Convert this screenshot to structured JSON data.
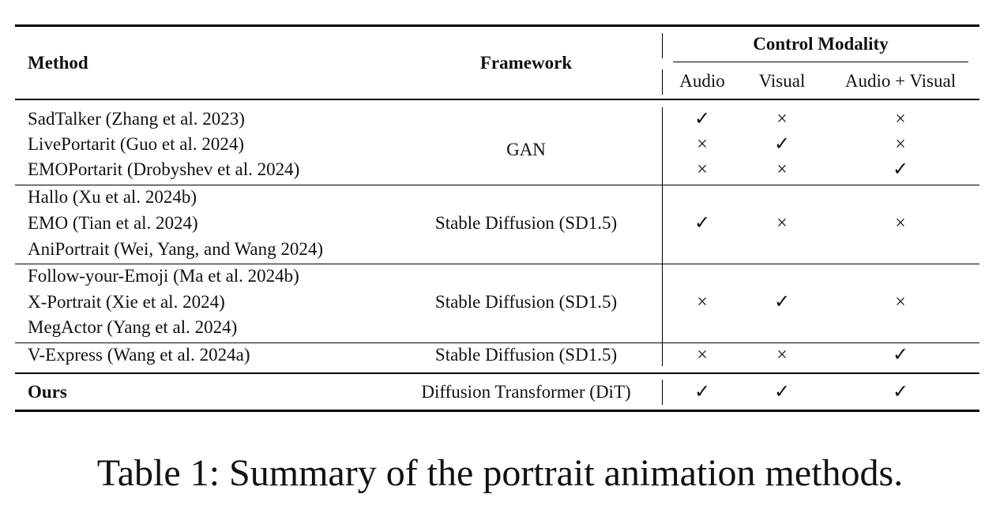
{
  "table": {
    "headers": {
      "method": "Method",
      "framework": "Framework",
      "control_modality": "Control Modality",
      "sub": [
        "Audio",
        "Visual",
        "Audio + Visual"
      ]
    },
    "groups": [
      {
        "framework": "GAN",
        "rows": [
          {
            "method": "SadTalker (Zhang et al. 2023)",
            "marks": [
              "✓",
              "×",
              "×"
            ]
          },
          {
            "method": "LivePortarit (Guo et al. 2024)",
            "marks": [
              "×",
              "✓",
              "×"
            ]
          },
          {
            "method": "EMOPortarit (Drobyshev et al. 2024)",
            "marks": [
              "×",
              "×",
              "✓"
            ]
          }
        ]
      },
      {
        "framework": "Stable Diffusion (SD1.5)",
        "methods": [
          "Hallo (Xu et al. 2024b)",
          "EMO (Tian et al. 2024)",
          "AniPortrait (Wei, Yang, and Wang 2024)"
        ],
        "marks": [
          "✓",
          "×",
          "×"
        ]
      },
      {
        "framework": "Stable Diffusion (SD1.5)",
        "methods": [
          "Follow-your-Emoji (Ma et al. 2024b)",
          "X-Portrait (Xie et al. 2024)",
          "MegActor (Yang et al. 2024)"
        ],
        "marks": [
          "×",
          "✓",
          "×"
        ]
      },
      {
        "framework": "Stable Diffusion (SD1.5)",
        "methods": [
          "V-Express (Wang et al. 2024a)"
        ],
        "marks": [
          "×",
          "×",
          "✓"
        ]
      }
    ],
    "ours": {
      "method": "Ours",
      "framework": "Diffusion Transformer (DiT)",
      "marks": [
        "✓",
        "✓",
        "✓"
      ]
    }
  },
  "caption": "Table 1: Summary of the portrait animation methods."
}
